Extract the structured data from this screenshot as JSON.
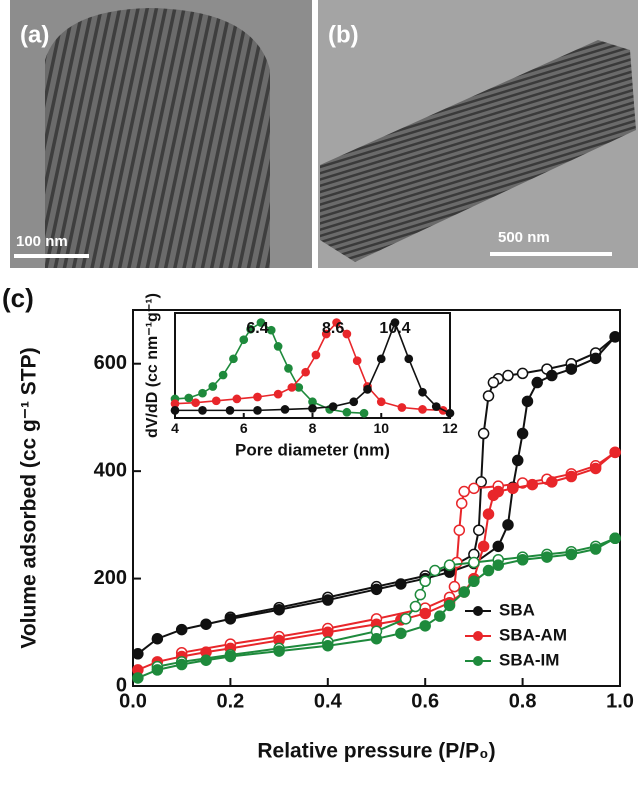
{
  "images": [
    {
      "label": "(a)",
      "scale_bar": "100 nm"
    },
    {
      "label": "(b)",
      "scale_bar": "500 nm"
    }
  ],
  "chart_data": [
    {
      "type": "line",
      "panel_label": "(c)",
      "x_label": "Relative pressure (P/P₀)",
      "y_label": "Volume adsorbed (cc g⁻¹ STP)",
      "xlim": [
        0,
        1
      ],
      "ylim": [
        0,
        700
      ],
      "xticks": [
        {
          "value": 0,
          "label": "0.0"
        },
        0.2,
        0.4,
        0.6,
        0.8,
        {
          "value": 1,
          "label": "1.0"
        }
      ],
      "yticks": [
        0,
        200,
        400,
        600
      ],
      "legend": "lower right",
      "series": [
        {
          "name": "SBA",
          "color": "#111111",
          "x": [
            0.01,
            0.05,
            0.1,
            0.15,
            0.2,
            0.3,
            0.4,
            0.5,
            0.55,
            0.6,
            0.65,
            0.7,
            0.75,
            0.77,
            0.78,
            0.79,
            0.8,
            0.81,
            0.83,
            0.86,
            0.9,
            0.95,
            0.99
          ],
          "values": [
            60,
            88,
            105,
            115,
            125,
            142,
            160,
            180,
            190,
            200,
            212,
            228,
            260,
            300,
            370,
            420,
            470,
            530,
            565,
            578,
            590,
            610,
            650
          ],
          "desorption_x": [
            0.99,
            0.95,
            0.9,
            0.85,
            0.8,
            0.77,
            0.75,
            0.74,
            0.73,
            0.72,
            0.715,
            0.71,
            0.7,
            0.65,
            0.6,
            0.5,
            0.4,
            0.3,
            0.2
          ],
          "desorption_values": [
            650,
            620,
            600,
            590,
            582,
            578,
            572,
            565,
            540,
            470,
            380,
            290,
            245,
            220,
            205,
            185,
            165,
            146,
            128
          ]
        },
        {
          "name": "SBA-AM",
          "color": "#e8262a",
          "x": [
            0.01,
            0.05,
            0.1,
            0.15,
            0.2,
            0.3,
            0.4,
            0.5,
            0.55,
            0.6,
            0.65,
            0.68,
            0.7,
            0.72,
            0.73,
            0.74,
            0.75,
            0.78,
            0.82,
            0.86,
            0.9,
            0.95,
            0.99
          ],
          "values": [
            30,
            45,
            55,
            63,
            70,
            85,
            100,
            115,
            123,
            135,
            155,
            175,
            200,
            260,
            320,
            355,
            362,
            368,
            375,
            380,
            390,
            405,
            435
          ],
          "desorption_x": [
            0.99,
            0.95,
            0.9,
            0.85,
            0.8,
            0.75,
            0.7,
            0.68,
            0.675,
            0.67,
            0.665,
            0.66,
            0.65,
            0.6,
            0.5,
            0.4,
            0.3,
            0.2,
            0.1
          ],
          "desorption_values": [
            435,
            410,
            395,
            385,
            378,
            372,
            368,
            362,
            340,
            290,
            230,
            185,
            165,
            145,
            125,
            107,
            92,
            78,
            62
          ]
        },
        {
          "name": "SBA-IM",
          "color": "#1e8a3c",
          "x": [
            0.01,
            0.05,
            0.1,
            0.15,
            0.2,
            0.3,
            0.4,
            0.5,
            0.55,
            0.6,
            0.63,
            0.65,
            0.68,
            0.7,
            0.73,
            0.75,
            0.8,
            0.85,
            0.9,
            0.95,
            0.99
          ],
          "values": [
            15,
            30,
            40,
            48,
            55,
            65,
            75,
            88,
            98,
            112,
            130,
            150,
            175,
            195,
            215,
            225,
            235,
            240,
            245,
            255,
            275
          ],
          "desorption_x": [
            0.99,
            0.95,
            0.9,
            0.85,
            0.8,
            0.75,
            0.7,
            0.65,
            0.62,
            0.6,
            0.59,
            0.58,
            0.56,
            0.5,
            0.4,
            0.3,
            0.2,
            0.1,
            0.05
          ],
          "desorption_values": [
            275,
            260,
            250,
            245,
            240,
            235,
            230,
            225,
            215,
            195,
            170,
            148,
            125,
            102,
            82,
            70,
            58,
            45,
            36
          ]
        }
      ]
    },
    {
      "type": "line",
      "x_label": "Pore diameter (nm)",
      "y_label": "dV/dD (cc nm⁻¹g⁻¹)",
      "xlim": [
        4,
        12
      ],
      "ylim": [
        0,
        1.1
      ],
      "xticks": [
        4,
        6,
        8,
        10,
        12
      ],
      "series": [
        {
          "color": "#1e8a3c",
          "x": [
            4,
            4.4,
            4.8,
            5.1,
            5.4,
            5.7,
            6.0,
            6.2,
            6.5,
            6.8,
            7.0,
            7.3,
            7.6,
            8.0,
            8.5,
            9.0,
            9.5
          ],
          "values": [
            0.2,
            0.21,
            0.26,
            0.33,
            0.45,
            0.62,
            0.82,
            0.93,
            1.0,
            0.92,
            0.75,
            0.52,
            0.32,
            0.17,
            0.09,
            0.06,
            0.05
          ]
        },
        {
          "color": "#e8262a",
          "x": [
            4,
            4.6,
            5.2,
            5.8,
            6.4,
            7.0,
            7.4,
            7.8,
            8.1,
            8.4,
            8.7,
            9.0,
            9.3,
            9.6,
            10.0,
            10.6,
            11.2,
            11.8
          ],
          "values": [
            0.15,
            0.16,
            0.18,
            0.2,
            0.22,
            0.25,
            0.32,
            0.48,
            0.66,
            0.88,
            1.0,
            0.88,
            0.6,
            0.33,
            0.17,
            0.11,
            0.09,
            0.08
          ]
        },
        {
          "color": "#111111",
          "x": [
            4,
            4.8,
            5.6,
            6.4,
            7.2,
            8.0,
            8.6,
            9.2,
            9.6,
            10.0,
            10.4,
            10.8,
            11.2,
            11.6,
            12
          ],
          "values": [
            0.08,
            0.08,
            0.08,
            0.08,
            0.09,
            0.1,
            0.12,
            0.17,
            0.3,
            0.62,
            1.0,
            0.62,
            0.27,
            0.12,
            0.05
          ]
        }
      ],
      "annotations": [
        {
          "text": "6.4",
          "x": 6.4
        },
        {
          "text": "8.6",
          "x": 8.6
        },
        {
          "text": "10.4",
          "x": 10.4
        }
      ]
    }
  ]
}
